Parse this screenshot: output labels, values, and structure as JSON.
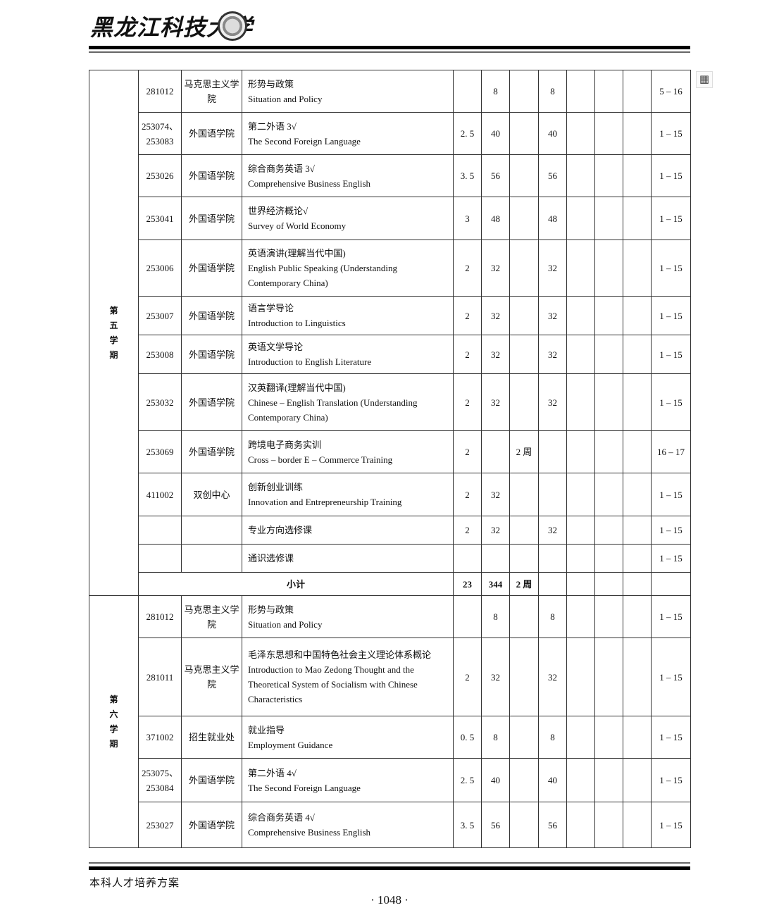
{
  "header": {
    "university": "黑龙江科技大学"
  },
  "semesters": [
    {
      "label": "第五学期",
      "rows": [
        {
          "code": "281012",
          "dept": "马克思主义学院",
          "cn": "形势与政策",
          "en": "Situation and Policy",
          "credits": "",
          "hours": "8",
          "c7": "",
          "c8": "8",
          "weeks": "5 – 16",
          "h": 60
        },
        {
          "code": "253074、253083",
          "dept": "外国语学院",
          "cn": "第二外语 3√",
          "en": "The Second Foreign Language",
          "credits": "2. 5",
          "hours": "40",
          "c7": "",
          "c8": "40",
          "weeks": "1 – 15",
          "h": 60
        },
        {
          "code": "253026",
          "dept": "外国语学院",
          "cn": "综合商务英语 3√",
          "en": "Comprehensive Business English",
          "credits": "3. 5",
          "hours": "56",
          "c7": "",
          "c8": "56",
          "weeks": "1 – 15",
          "h": 60
        },
        {
          "code": "253041",
          "dept": "外国语学院",
          "cn": "世界经济概论√",
          "en": "Survey of World Economy",
          "credits": "3",
          "hours": "48",
          "c7": "",
          "c8": "48",
          "weeks": "1 – 15",
          "h": 61
        },
        {
          "code": "253006",
          "dept": "外国语学院",
          "cn": "英语演讲(理解当代中国)",
          "en": "English Public Speaking (Understanding Contemporary China)",
          "credits": "2",
          "hours": "32",
          "c7": "",
          "c8": "32",
          "weeks": "1 – 15",
          "h": 80
        },
        {
          "code": "253007",
          "dept": "外国语学院",
          "cn": "语言学导论",
          "en": "Introduction to Linguistics",
          "credits": "2",
          "hours": "32",
          "c7": "",
          "c8": "32",
          "weeks": "1 – 15",
          "h": 55
        },
        {
          "code": "253008",
          "dept": "外国语学院",
          "cn": "英语文学导论",
          "en": "Introduction to English Literature",
          "credits": "2",
          "hours": "32",
          "c7": "",
          "c8": "32",
          "weeks": "1 – 15",
          "h": 55
        },
        {
          "code": "253032",
          "dept": "外国语学院",
          "cn": "汉英翻译(理解当代中国)",
          "en": "Chinese – English Translation (Understanding Contemporary China)",
          "credits": "2",
          "hours": "32",
          "c7": "",
          "c8": "32",
          "weeks": "1 – 15",
          "h": 81
        },
        {
          "code": "253069",
          "dept": "外国语学院",
          "cn": "跨境电子商务实训",
          "en": "Cross – border E – Commerce Training",
          "credits": "2",
          "hours": "",
          "c7": "2 周",
          "c8": "",
          "weeks": "16 – 17",
          "h": 60
        },
        {
          "code": "411002",
          "dept": "双创中心",
          "cn": "创新创业训练",
          "en": "Innovation and Entrepreneurship Training",
          "credits": "2",
          "hours": "32",
          "c7": "",
          "c8": "",
          "weeks": "1 – 15",
          "h": 61
        },
        {
          "code": "",
          "dept": "",
          "cn": "专业方向选修课",
          "en": "",
          "credits": "2",
          "hours": "32",
          "c7": "",
          "c8": "32",
          "weeks": "1 – 15",
          "h": 40
        },
        {
          "code": "",
          "dept": "",
          "cn": "通识选修课",
          "en": "",
          "credits": "",
          "hours": "",
          "c7": "",
          "c8": "",
          "weeks": "1 – 15",
          "h": 40
        }
      ],
      "subtotal": {
        "label": "小计",
        "credits": "23",
        "hours": "344",
        "c7": "2 周"
      }
    },
    {
      "label": "第六学期",
      "rows": [
        {
          "code": "281012",
          "dept": "马克思主义学院",
          "cn": "形势与政策",
          "en": "Situation and Policy",
          "credits": "",
          "hours": "8",
          "c7": "",
          "c8": "8",
          "weeks": "1 – 15",
          "h": 60
        },
        {
          "code": "281011",
          "dept": "马克思主义学院",
          "cn": "毛泽东思想和中国特色社会主义理论体系概论",
          "en": "Introduction to Mao Zedong Thought and the Theoretical System of Socialism with Chinese Characteristics",
          "credits": "2",
          "hours": "32",
          "c7": "",
          "c8": "32",
          "weeks": "1 – 15",
          "h": 111
        },
        {
          "code": "371002",
          "dept": "招生就业处",
          "cn": "就业指导",
          "en": "Employment Guidance",
          "credits": "0. 5",
          "hours": "8",
          "c7": "",
          "c8": "8",
          "weeks": "1 – 15",
          "h": 60
        },
        {
          "code": "253075、253084",
          "dept": "外国语学院",
          "cn": "第二外语 4√",
          "en": "The Second Foreign Language",
          "credits": "2. 5",
          "hours": "40",
          "c7": "",
          "c8": "40",
          "weeks": "1 – 15",
          "h": 62
        },
        {
          "code": "253027",
          "dept": "外国语学院",
          "cn": "综合商务英语 4√",
          "en": "Comprehensive Business English",
          "credits": "3. 5",
          "hours": "56",
          "c7": "",
          "c8": "56",
          "weeks": "1 – 15",
          "h": 65
        }
      ]
    }
  ],
  "side_icon": "table-icon",
  "footer": {
    "title": "本科人才培养方案",
    "page": "· 1048 ·"
  }
}
